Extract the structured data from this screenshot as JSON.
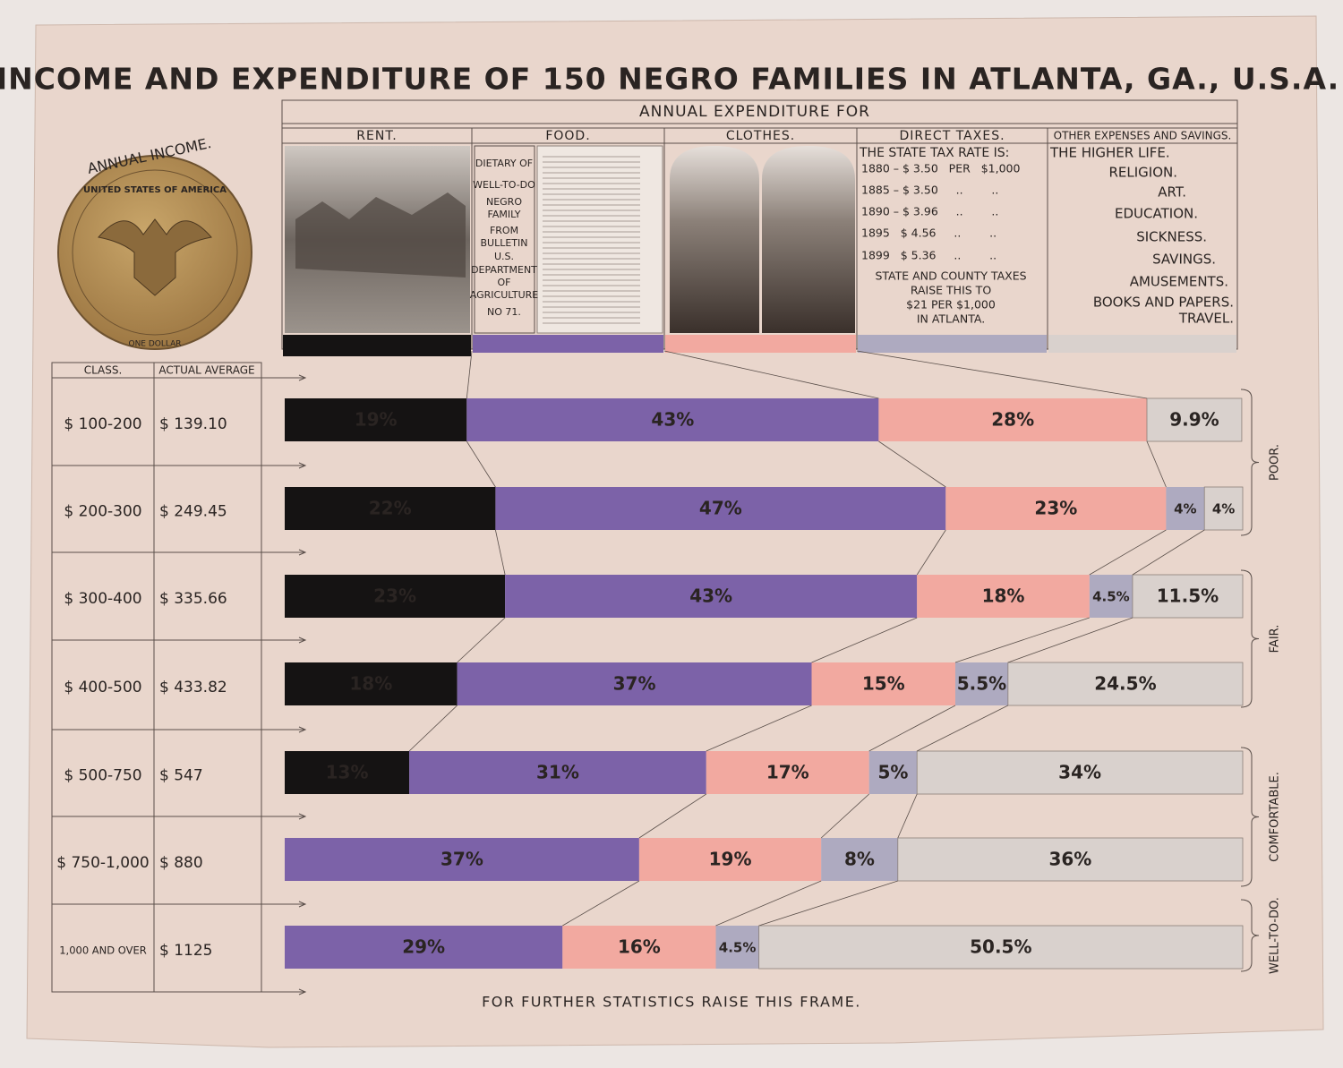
{
  "title": "INCOME AND EXPENDITURE OF 150 NEGRO FAMILIES IN ATLANTA, GA., U.S.A.",
  "coin": {
    "heading": "ANNUAL INCOME.",
    "legend": "UNITED STATES OF AMERICA",
    "denomination": "ONE DOLLAR"
  },
  "table": {
    "headers": [
      "CLASS.",
      "ACTUAL AVERAGE"
    ],
    "actual_average": [
      "$ 139.10",
      "$ 249.45",
      "$ 335.66",
      "$ 433.82",
      "$ 547",
      "$ 880",
      "$ 1125"
    ]
  },
  "panels": {
    "food": [
      "DIETARY OF",
      "WELL-TO-DO",
      "NEGRO",
      "FAMILY",
      "FROM",
      "BULLETIN",
      "U.S.",
      "DEPARTMENT",
      "OF",
      "AGRICULTURE",
      "NO 71."
    ],
    "taxes": [
      "THE STATE TAX RATE IS:",
      "1880 – $ 3.50   PER   $1,000",
      "1885 – $ 3.50     ..        ..",
      "1890 – $ 3.96     ..        ..",
      "1895   $ 4.56     ..        ..",
      "1899   $ 5.36     ..        ..",
      "STATE AND COUNTY TAXES",
      "RAISE THIS TO",
      "$21 PER $1,000",
      "IN ATLANTA."
    ],
    "other": [
      "THE HIGHER LIFE.",
      "RELIGION.",
      "ART.",
      "EDUCATION.",
      "SICKNESS.",
      "SAVINGS.",
      "AMUSEMENTS.",
      "BOOKS AND PAPERS.",
      "TRAVEL."
    ]
  },
  "footer": "FOR FURTHER STATISTICS RAISE THIS FRAME.",
  "chart_data": {
    "type": "bar",
    "orientation": "horizontal",
    "stacked": true,
    "header": "ANNUAL EXPENDITURE FOR",
    "categories": [
      "$ 100-200",
      "$ 200-300",
      "$ 300-400",
      "$ 400-500",
      "$ 500-750",
      "$ 750-1,000",
      "1,000 AND OVER"
    ],
    "xlim": [
      0,
      100
    ],
    "groups": [
      "POOR.",
      "FAIR.",
      "COMFORTABLE.",
      "WELL-TO-DO."
    ],
    "series": [
      {
        "name": "RENT.",
        "color": "#151313",
        "values": [
          19,
          22,
          23,
          18,
          13,
          null,
          null
        ],
        "value_labels": [
          "19%",
          "22%",
          "23%",
          "18%",
          "13%",
          null,
          null
        ]
      },
      {
        "name": "FOOD.",
        "color": "#7c62a8",
        "values": [
          43,
          47,
          43,
          37,
          31,
          37,
          29
        ],
        "value_labels": [
          "43%",
          "47%",
          "43%",
          "37%",
          "31%",
          "37%",
          "29%"
        ]
      },
      {
        "name": "CLOTHES.",
        "color": "#f2a9a0",
        "values": [
          28,
          23,
          18,
          15,
          17,
          19,
          16
        ],
        "value_labels": [
          "28%",
          "23%",
          "18%",
          "15%",
          "17%",
          "19%",
          "16%"
        ]
      },
      {
        "name": "DIRECT TAXES.",
        "color": "#aeaac0",
        "values": [
          null,
          4,
          4.5,
          5.5,
          5,
          8,
          4.5
        ],
        "value_labels": [
          null,
          "4%",
          "4.5%",
          "5.5%",
          "5%",
          "8%",
          "4.5%"
        ]
      },
      {
        "name": "OTHER EXPENSES AND SAVINGS.",
        "color": "#d9d1cd",
        "values": [
          9.9,
          4,
          11.5,
          24.5,
          34,
          36,
          50.5
        ],
        "value_labels": [
          "9.9%",
          "4%",
          "11.5%",
          "24.5%",
          "34%",
          "36%",
          "50.5%"
        ]
      }
    ]
  }
}
